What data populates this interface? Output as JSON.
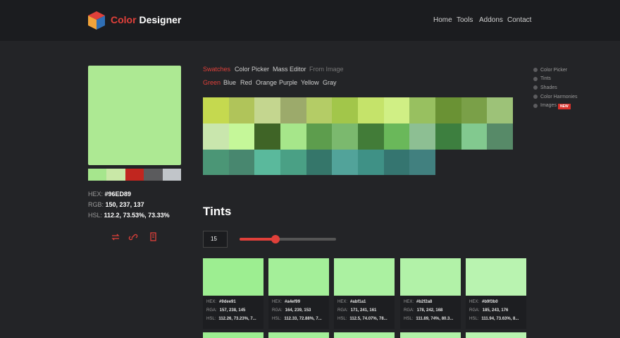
{
  "header": {
    "brand_first": "Color",
    "brand_second": "Designer",
    "nav": [
      "Home",
      "Tools",
      "Addons",
      "Contact"
    ]
  },
  "selected": {
    "hex_label": "HEX:",
    "hex": "#96ED89",
    "rgb_label": "RGB:",
    "rgb": "150, 237, 137",
    "hsl_label": "HSL:",
    "hsl": "112.2, 73.53%, 73.33%",
    "preview_color": "#ade993",
    "strip_colors": [
      "#a6e68d",
      "#c9e8a7",
      "#c1261f",
      "#5b5b5d",
      "#c1c5c9"
    ]
  },
  "tabs": [
    "Swatches",
    "Color Picker",
    "Mass Editor",
    "From Image"
  ],
  "color_tabs": [
    "Green",
    "Blue",
    "Red",
    "Orange",
    "Purple",
    "Yellow",
    "Gray"
  ],
  "swatches": [
    [
      "#c5d94f",
      "#b0c45a",
      "#c4d68f",
      "#9caa6b",
      "#b4cc66",
      "#a2c64a",
      "#c5e36a",
      "#d0ef85",
      "#98c060",
      "#6a9234",
      "#7aa048",
      "#9dc278"
    ],
    [
      "#c9e6ad",
      "#c5f799",
      "#3f6426",
      "#a6e68a",
      "#5d9d4d",
      "#7bb96e",
      "#427c38",
      "#6ab85a",
      "#8dbf93",
      "#3d7f3f",
      "#82c98f",
      "#578a68"
    ],
    [
      "#4b9676",
      "#48876f",
      "#5ab99c",
      "#4aa085",
      "#35766a",
      "#52a39a",
      "#3f9186",
      "#357570",
      "#41807f"
    ]
  ],
  "sidebar": [
    "Color Picker",
    "Tints",
    "Shades",
    "Color Harmonies",
    "Images"
  ],
  "sidebar_badge": "NEW",
  "tints": {
    "title": "Tints",
    "count": "15",
    "labels": [
      "HEX:",
      "RGA:",
      "HSL:"
    ],
    "cards": [
      {
        "hex": "#9dee91",
        "rgb": "157, 238, 145",
        "hsl": "112.26, 73.23%, 7..."
      },
      {
        "hex": "#a4ef99",
        "rgb": "164, 239, 153",
        "hsl": "112.33, 72.88%, 7..."
      },
      {
        "hex": "#abf1a1",
        "rgb": "171, 241, 161",
        "hsl": "112.5, 74.07%, 78..."
      },
      {
        "hex": "#b2f2a8",
        "rgb": "178, 242, 168",
        "hsl": "111.89, 74%, 80.3..."
      },
      {
        "hex": "#b9f3b0",
        "rgb": "185, 243, 176",
        "hsl": "111.94, 73.63%, 8..."
      }
    ]
  }
}
